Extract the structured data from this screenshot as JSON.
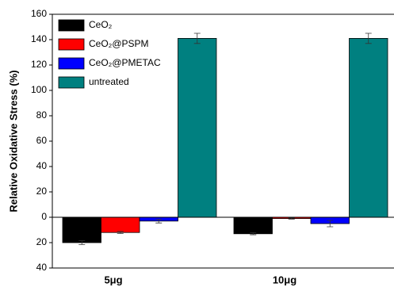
{
  "chart_data": {
    "type": "bar",
    "y_label": "Relative Oxidative Stress (%)",
    "categories": [
      "5μg",
      "10μg"
    ],
    "series": [
      {
        "name": "CeO₂",
        "color": "#000000",
        "values": [
          -20,
          -13
        ],
        "errors": [
          1.5,
          0.8
        ]
      },
      {
        "name": "CeO₂@PSPM",
        "color": "#ff0000",
        "values": [
          -12,
          -1
        ],
        "errors": [
          0.8,
          0.5
        ]
      },
      {
        "name": "CeO₂@PMETAC",
        "color": "#0000ff",
        "values": [
          -3,
          -5
        ],
        "errors": [
          1.5,
          2.5
        ]
      },
      {
        "name": "untreated",
        "color": "#008080",
        "values": [
          141,
          141
        ],
        "errors": [
          4,
          4
        ]
      }
    ],
    "ylim": [
      -40,
      160
    ],
    "yticks": [
      {
        "value": -40,
        "label": "40"
      },
      {
        "value": -20,
        "label": "20"
      },
      0,
      20,
      40,
      60,
      80,
      100,
      120,
      140,
      160
    ],
    "legend": "top-left"
  }
}
